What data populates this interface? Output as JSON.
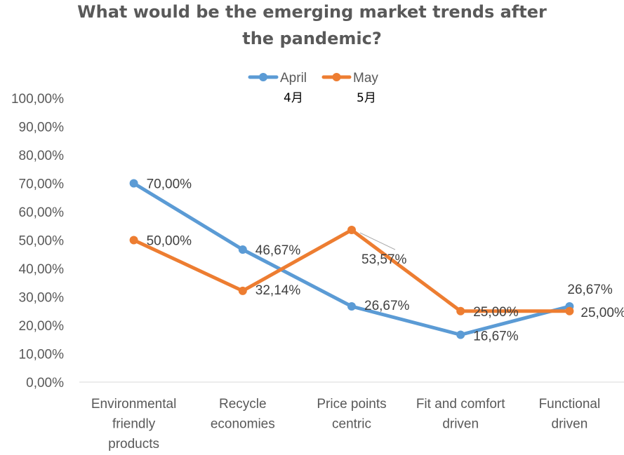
{
  "chart_data": {
    "type": "line",
    "title_lines": [
      "What would be the emerging market trends after",
      "the pandemic?"
    ],
    "categories": [
      [
        "Environmental",
        "friendly",
        "products"
      ],
      [
        "Recycle",
        "economies"
      ],
      [
        "Price points",
        "centric"
      ],
      [
        "Fit and comfort",
        "driven"
      ],
      [
        "Functional",
        "driven"
      ]
    ],
    "series": [
      {
        "name": "April",
        "name_secondary": "4月",
        "color": "#5B9BD5",
        "values": [
          70.0,
          46.67,
          26.67,
          16.67,
          26.67
        ],
        "labels": [
          "70,00%",
          "46,67%",
          "26,67%",
          "16,67%",
          "26,67%"
        ]
      },
      {
        "name": "May",
        "name_secondary": "5月",
        "color": "#ED7D31",
        "values": [
          50.0,
          32.14,
          53.57,
          25.0,
          25.0
        ],
        "labels": [
          "50,00%",
          "32,14%",
          "53,57%",
          "25,00%",
          "25,00%"
        ]
      }
    ],
    "y_ticks": [
      "0,00%",
      "10,00%",
      "20,00%",
      "30,00%",
      "40,00%",
      "50,00%",
      "60,00%",
      "70,00%",
      "80,00%",
      "90,00%",
      "100,00%"
    ],
    "ylim": [
      0,
      100
    ],
    "grid": false,
    "legend_position": "top-center"
  }
}
